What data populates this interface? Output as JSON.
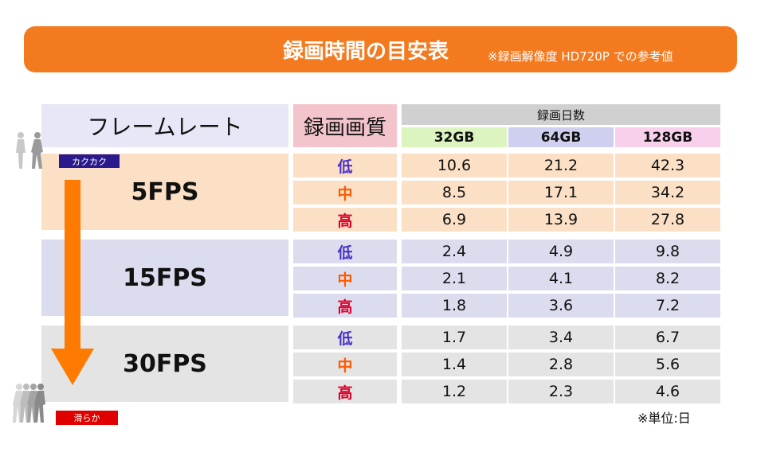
{
  "header": {
    "title": "録画時間の目安表",
    "subtitle": "※録画解像度 HD720P での参考値"
  },
  "table": {
    "framerate_header": "フレームレート",
    "quality_header": "録画画質",
    "days_header": "録画日数",
    "capacities": [
      "32GB",
      "64GB",
      "128GB"
    ],
    "capacity_colors": [
      "#dcf4c0",
      "#cfcff0",
      "#f8d0ec"
    ],
    "quality_colors": {
      "low": "#4a32c8",
      "mid": "#ff5a00",
      "high": "#e0002a"
    },
    "groups": [
      {
        "fps": "5FPS",
        "color": "#fbe0c6",
        "rows": [
          {
            "quality": "低",
            "level": "low",
            "values": [
              "10.6",
              "21.2",
              "42.3"
            ]
          },
          {
            "quality": "中",
            "level": "mid",
            "values": [
              "8.5",
              "17.1",
              "34.2"
            ]
          },
          {
            "quality": "高",
            "level": "high",
            "values": [
              "6.9",
              "13.9",
              "27.8"
            ]
          }
        ]
      },
      {
        "fps": "15FPS",
        "color": "#dcdcef",
        "rows": [
          {
            "quality": "低",
            "level": "low",
            "values": [
              "2.4",
              "4.9",
              "9.8"
            ]
          },
          {
            "quality": "中",
            "level": "mid",
            "values": [
              "2.1",
              "4.1",
              "8.2"
            ]
          },
          {
            "quality": "高",
            "level": "high",
            "values": [
              "1.8",
              "3.6",
              "7.2"
            ]
          }
        ]
      },
      {
        "fps": "30FPS",
        "color": "#e4e4e4",
        "rows": [
          {
            "quality": "低",
            "level": "low",
            "values": [
              "1.7",
              "3.4",
              "6.7"
            ]
          },
          {
            "quality": "中",
            "level": "mid",
            "values": [
              "1.4",
              "2.8",
              "5.6"
            ]
          },
          {
            "quality": "高",
            "level": "high",
            "values": [
              "1.2",
              "2.3",
              "4.6"
            ]
          }
        ]
      }
    ]
  },
  "indicator": {
    "top_label": "カクカク",
    "top_color": "#2a1a8c",
    "bottom_label": "滑らか",
    "bottom_color": "#e00000",
    "arrow_color": "#ff7a00",
    "top_icon": "walking-people-icon",
    "bottom_icon": "running-people-motion-icon"
  },
  "footer": {
    "unit_note": "※単位:日"
  }
}
